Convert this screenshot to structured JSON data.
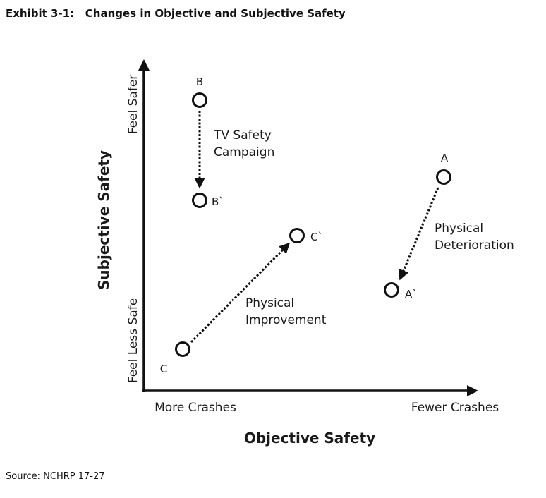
{
  "title": "Exhibit 3-1:   Changes in Objective and Subjective Safety",
  "source": "Source: NCHRP 17-27",
  "x_axis": {
    "title": "Objective Safety",
    "low_label": "More Crashes",
    "high_label": "Fewer Crashes"
  },
  "y_axis": {
    "title": "Subjective Safety",
    "low_label": "Feel Less Safe",
    "high_label": "Feel Safer"
  },
  "points": {
    "A": "A",
    "A_prime": "A`",
    "B": "B",
    "B_prime": "B`",
    "C": "C",
    "C_prime": "C`"
  },
  "transitions": {
    "tv": [
      "TV Safety",
      "Campaign"
    ],
    "deterioration": [
      "Physical",
      "Deterioration"
    ],
    "improvement": [
      "Physical",
      "Improvement"
    ]
  }
}
